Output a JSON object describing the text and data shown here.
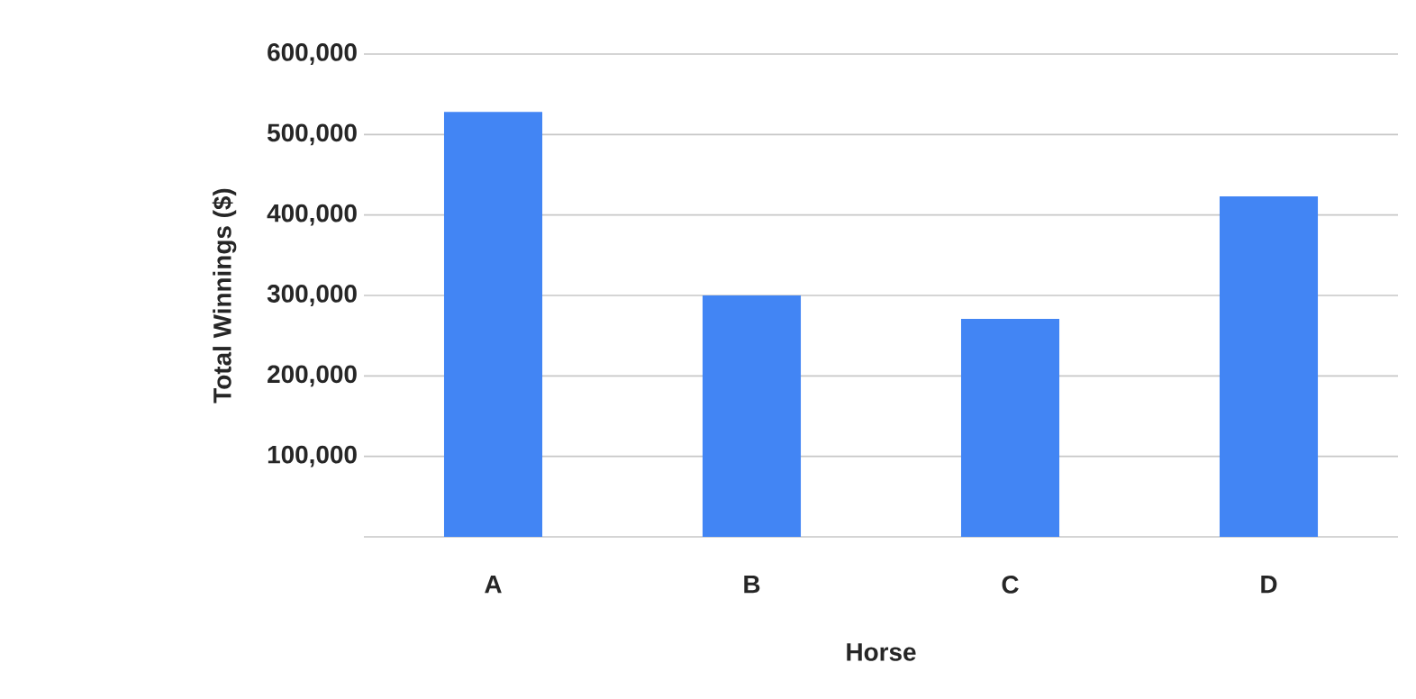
{
  "chart_data": {
    "type": "bar",
    "xlabel": "Horse",
    "ylabel": "Total Winnings ($)",
    "categories": [
      "A",
      "B",
      "C",
      "D"
    ],
    "values": [
      528000,
      300000,
      271000,
      423000
    ],
    "color": "#4285f4",
    "ylim": [
      0,
      600000
    ],
    "yticks": [
      {
        "value": 0,
        "label": null
      },
      {
        "value": 100000,
        "label": "100,000"
      },
      {
        "value": 200000,
        "label": "200,000"
      },
      {
        "value": 300000,
        "label": "300,000"
      },
      {
        "value": 400000,
        "label": "400,000"
      },
      {
        "value": 500000,
        "label": "500,000"
      },
      {
        "value": 600000,
        "label": "600,000"
      }
    ],
    "grid": "y"
  }
}
